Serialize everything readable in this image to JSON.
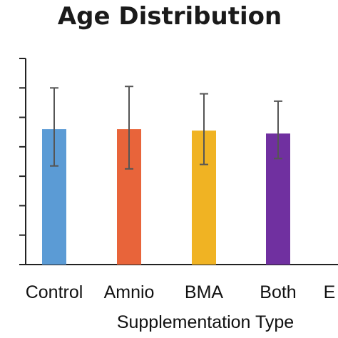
{
  "chart_data": {
    "type": "bar",
    "title": "Age Distribution",
    "xlabel": "Supplementation Type",
    "ylabel": "",
    "categories": [
      "Control",
      "Amnio",
      "BMA",
      "Both",
      "E"
    ],
    "values": [
      4.6,
      4.6,
      4.55,
      4.45,
      null
    ],
    "error_low": [
      3.35,
      3.25,
      3.4,
      3.6,
      null
    ],
    "error_high": [
      6.0,
      6.05,
      5.8,
      5.55,
      null
    ],
    "colors": [
      "#5b9bd5",
      "#e8643a",
      "#f0b323",
      "#7030a0",
      "#ffffff"
    ],
    "ylim": [
      0,
      7
    ],
    "y_tick_count": 7,
    "grid": false,
    "legend": "none"
  }
}
